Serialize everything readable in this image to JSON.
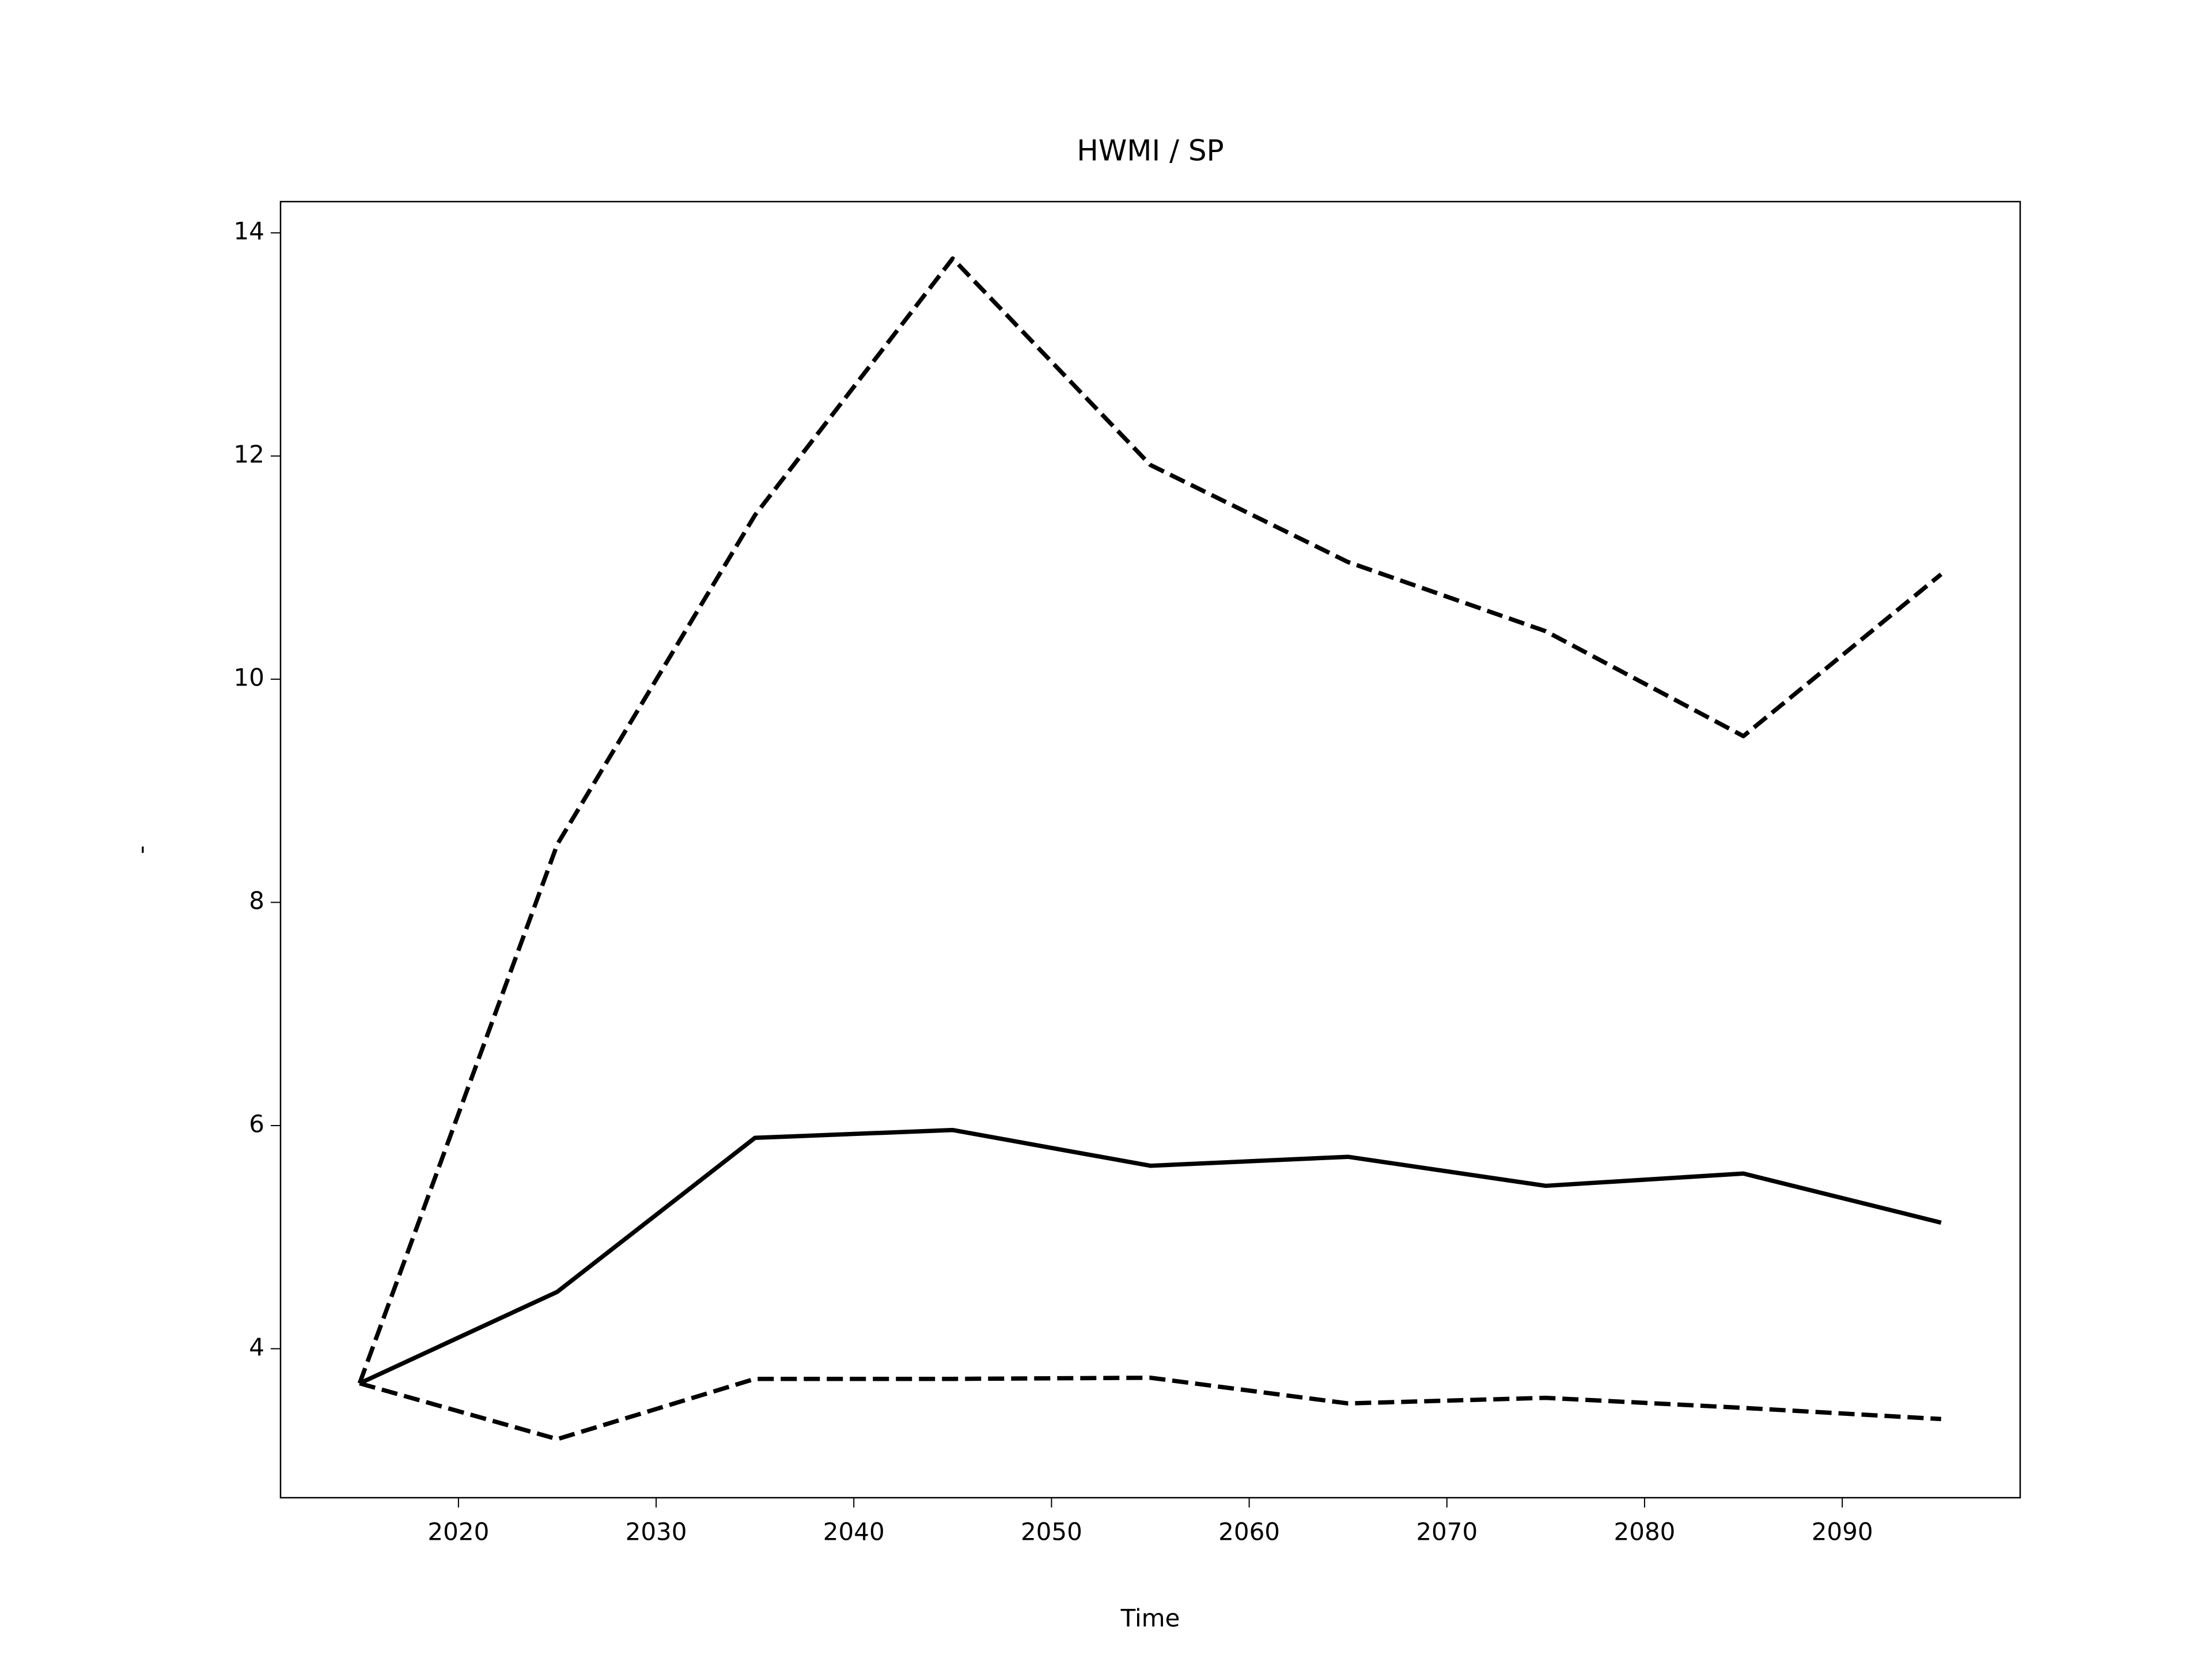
{
  "chart_data": {
    "type": "line",
    "title": "HWMI / SP",
    "x_label": "Time",
    "y_label": "-",
    "x": [
      2015,
      2025,
      2035,
      2045,
      2055,
      2065,
      2075,
      2085,
      2095
    ],
    "series": [
      {
        "color": "#000000",
        "dash": false,
        "values": [
          3.69,
          4.51,
          5.89,
          5.96,
          5.64,
          5.72,
          5.46,
          5.57,
          5.13
        ]
      },
      {
        "color": "#000000",
        "dash": true,
        "values": [
          3.69,
          8.52,
          11.47,
          13.77,
          11.92,
          11.05,
          10.43,
          9.49,
          10.94
        ]
      },
      {
        "color": "#000000",
        "dash": true,
        "values": [
          3.69,
          3.19,
          3.73,
          3.73,
          3.74,
          3.51,
          3.56,
          3.47,
          3.37
        ]
      }
    ],
    "xlim": [
      2011,
      2099
    ],
    "xticks": [
      2020,
      2030,
      2040,
      2050,
      2060,
      2070,
      2080,
      2090
    ],
    "ylim": [
      2.665,
      14.28
    ],
    "yticks": [
      4,
      6,
      8,
      10,
      12,
      14
    ],
    "grid": false
  }
}
